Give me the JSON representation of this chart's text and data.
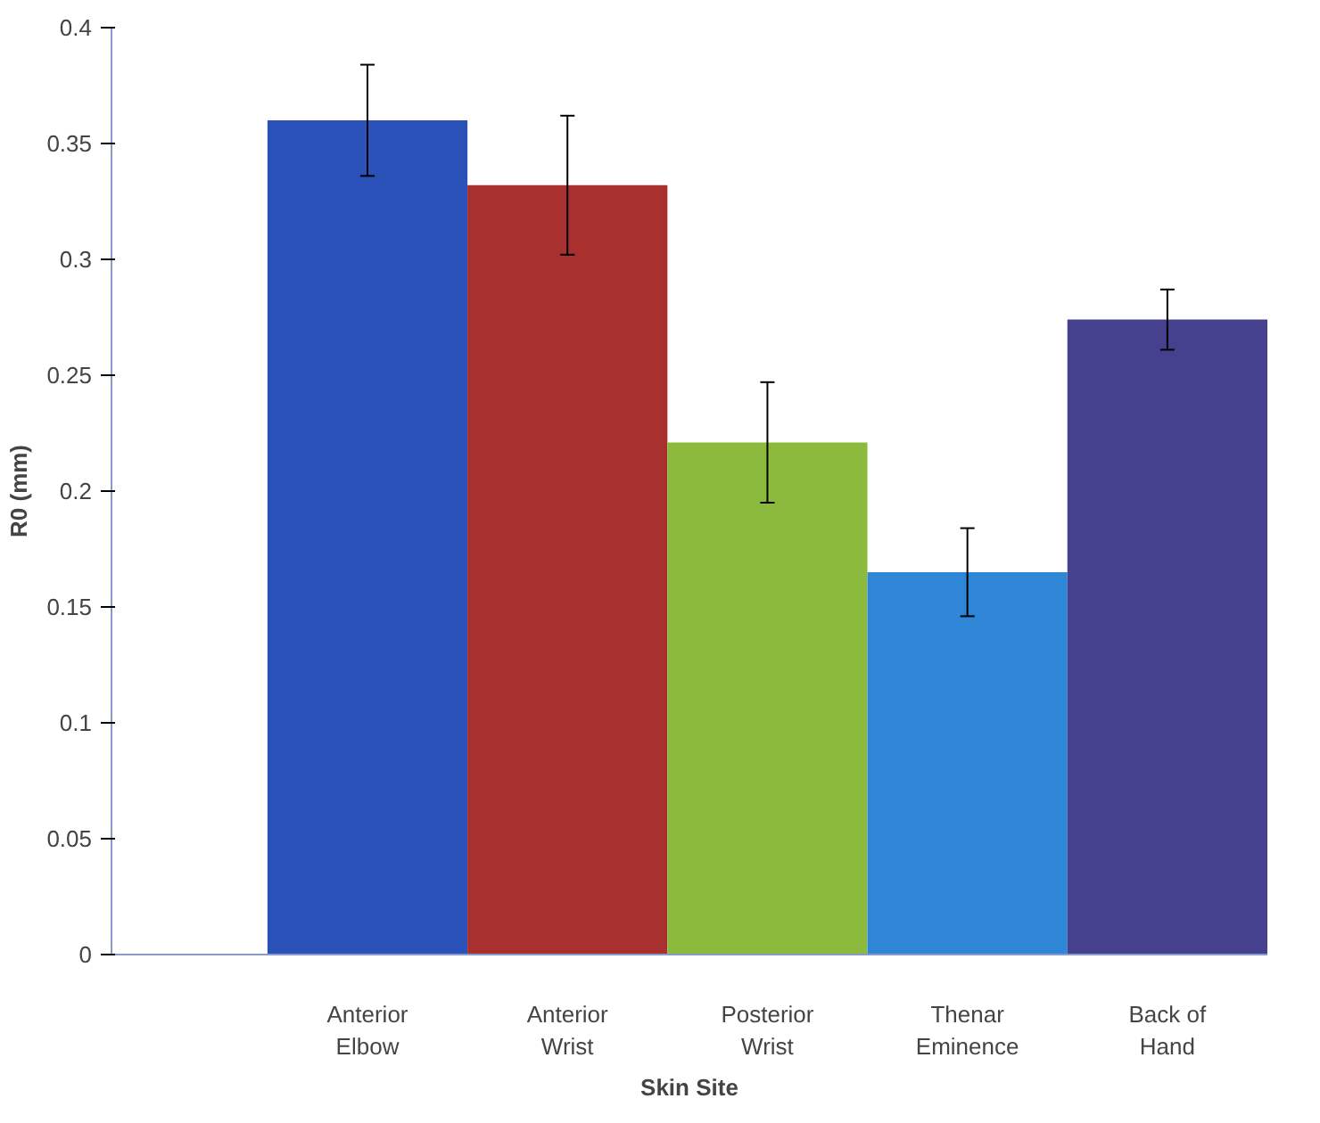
{
  "chart_data": {
    "type": "bar",
    "xlabel": "Skin Site",
    "ylabel": "R0 (mm)",
    "categories": [
      "Anterior\nElbow",
      "Anterior\nWrist",
      "Posterior\nWrist",
      "Thenar\nEminence",
      "Back of\nHand"
    ],
    "values": [
      0.36,
      0.332,
      0.221,
      0.165,
      0.274
    ],
    "colors": [
      "#2a52b8",
      "#a8302e",
      "#8cba3c",
      "#2f86d6",
      "#46418f"
    ],
    "errors": [
      0.024,
      0.03,
      0.026,
      0.019,
      0.013
    ],
    "ylim": [
      0,
      0.4
    ],
    "yticks": [
      {
        "value": 0,
        "label": "0"
      },
      0.05,
      0.1,
      0.15,
      0.2,
      0.25,
      0.3,
      0.35,
      0.4
    ],
    "grid": false
  }
}
